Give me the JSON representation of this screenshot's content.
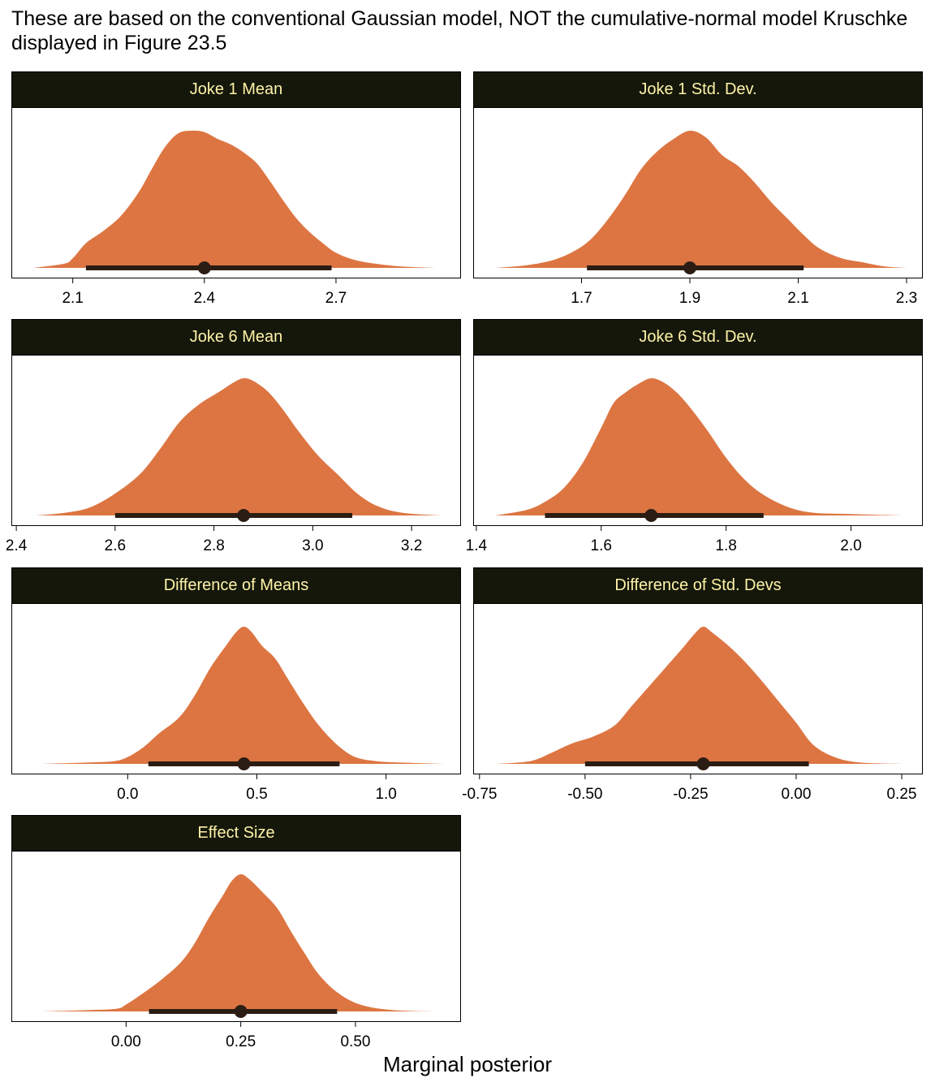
{
  "title": "These are based on the conventional Gaussian model, NOT the cumulative-normal model Kruschke displayed in Figure 23.5",
  "x_axis_label": "Marginal posterior",
  "colors": {
    "density_fill": "#DD7542",
    "interval": "#2B1D14",
    "strip_bg": "#14170A",
    "strip_text": "#FFF2A8"
  },
  "chart_data": [
    {
      "type": "area",
      "panel": "Joke 1 Mean",
      "xlim": [
        1.96,
        2.985
      ],
      "ticks": [
        "2.1",
        "2.4",
        "2.7"
      ],
      "density_range": [
        2.01,
        2.93
      ],
      "mode": 2.4,
      "interval": [
        2.13,
        2.69
      ],
      "density": {
        "x": [
          2.01,
          2.08,
          2.1,
          2.13,
          2.17,
          2.21,
          2.25,
          2.28,
          2.31,
          2.34,
          2.37,
          2.4,
          2.43,
          2.46,
          2.49,
          2.52,
          2.55,
          2.58,
          2.61,
          2.64,
          2.67,
          2.7,
          2.74,
          2.79,
          2.85,
          2.93
        ],
        "y": [
          0.0,
          0.03,
          0.07,
          0.18,
          0.27,
          0.38,
          0.55,
          0.72,
          0.88,
          0.98,
          1.0,
          0.99,
          0.94,
          0.9,
          0.84,
          0.76,
          0.63,
          0.49,
          0.36,
          0.26,
          0.18,
          0.11,
          0.06,
          0.03,
          0.01,
          0.0
        ]
      }
    },
    {
      "type": "area",
      "panel": "Joke 1 Std. Dev.",
      "xlim": [
        1.5,
        2.33
      ],
      "ticks": [
        "1.7",
        "1.9",
        "2.1",
        "2.3"
      ],
      "density_range": [
        1.54,
        2.3
      ],
      "mode": 1.9,
      "interval": [
        1.71,
        2.11
      ],
      "density": {
        "x": [
          1.54,
          1.6,
          1.65,
          1.69,
          1.72,
          1.75,
          1.78,
          1.81,
          1.84,
          1.87,
          1.9,
          1.93,
          1.96,
          1.99,
          2.02,
          2.05,
          2.08,
          2.11,
          2.14,
          2.18,
          2.22,
          2.26,
          2.3
        ],
        "y": [
          0.0,
          0.02,
          0.06,
          0.13,
          0.22,
          0.36,
          0.53,
          0.72,
          0.85,
          0.94,
          1.0,
          0.95,
          0.82,
          0.74,
          0.62,
          0.48,
          0.36,
          0.24,
          0.14,
          0.07,
          0.04,
          0.01,
          0.0
        ]
      }
    },
    {
      "type": "area",
      "panel": "Joke 6 Mean",
      "xlim": [
        2.39,
        3.3
      ],
      "ticks": [
        "2.4",
        "2.6",
        "2.8",
        "3.0",
        "3.2"
      ],
      "density_range": [
        2.44,
        3.26
      ],
      "mode": 2.86,
      "interval": [
        2.6,
        3.08
      ],
      "density": {
        "x": [
          2.44,
          2.5,
          2.55,
          2.6,
          2.65,
          2.69,
          2.73,
          2.77,
          2.81,
          2.84,
          2.86,
          2.88,
          2.91,
          2.94,
          2.97,
          3.01,
          3.05,
          3.09,
          3.13,
          3.18,
          3.26
        ],
        "y": [
          0.0,
          0.02,
          0.06,
          0.16,
          0.3,
          0.48,
          0.68,
          0.81,
          0.9,
          0.97,
          1.0,
          0.98,
          0.9,
          0.77,
          0.62,
          0.44,
          0.3,
          0.16,
          0.07,
          0.02,
          0.0
        ]
      }
    },
    {
      "type": "area",
      "panel": "Joke 6 Std. Dev.",
      "xlim": [
        1.395,
        2.115
      ],
      "ticks": [
        "1.4",
        "1.6",
        "1.8",
        "2.0"
      ],
      "density_range": [
        1.43,
        2.08
      ],
      "mode": 1.68,
      "interval": [
        1.51,
        1.86
      ],
      "density": {
        "x": [
          1.43,
          1.48,
          1.51,
          1.54,
          1.57,
          1.6,
          1.62,
          1.64,
          1.66,
          1.68,
          1.7,
          1.72,
          1.74,
          1.77,
          1.8,
          1.83,
          1.86,
          1.9,
          1.94,
          2.0,
          2.08
        ],
        "y": [
          0.0,
          0.04,
          0.1,
          0.2,
          0.38,
          0.64,
          0.82,
          0.9,
          0.96,
          1.0,
          0.97,
          0.9,
          0.8,
          0.62,
          0.42,
          0.26,
          0.15,
          0.06,
          0.02,
          0.01,
          0.0
        ]
      }
    },
    {
      "type": "area",
      "panel": "Difference of Means",
      "xlim": [
        -0.45,
        1.29
      ],
      "ticks": [
        "0.0",
        "0.5",
        "1.0"
      ],
      "density_range": [
        -0.33,
        1.23
      ],
      "mode": 0.45,
      "interval": [
        0.08,
        0.82
      ],
      "density": {
        "x": [
          -0.33,
          -0.15,
          -0.05,
          0.0,
          0.06,
          0.12,
          0.2,
          0.26,
          0.32,
          0.38,
          0.42,
          0.45,
          0.48,
          0.52,
          0.57,
          0.62,
          0.68,
          0.74,
          0.81,
          0.88,
          0.96,
          1.05,
          1.23
        ],
        "y": [
          0.0,
          0.01,
          0.02,
          0.05,
          0.12,
          0.22,
          0.34,
          0.5,
          0.7,
          0.86,
          0.96,
          1.0,
          0.96,
          0.86,
          0.77,
          0.62,
          0.44,
          0.28,
          0.14,
          0.05,
          0.02,
          0.01,
          0.0
        ]
      }
    },
    {
      "type": "area",
      "panel": "Difference of Std. Devs",
      "xlim": [
        -0.765,
        0.3
      ],
      "ticks": [
        "-0.75",
        "-0.50",
        "-0.25",
        "0.00",
        "0.25"
      ],
      "density_range": [
        -0.71,
        0.25
      ],
      "mode": -0.22,
      "interval": [
        -0.5,
        0.03
      ],
      "density": {
        "x": [
          -0.71,
          -0.63,
          -0.58,
          -0.53,
          -0.48,
          -0.43,
          -0.39,
          -0.35,
          -0.31,
          -0.27,
          -0.24,
          -0.22,
          -0.2,
          -0.16,
          -0.12,
          -0.08,
          -0.04,
          0.0,
          0.04,
          0.09,
          0.15,
          0.25
        ],
        "y": [
          0.0,
          0.02,
          0.08,
          0.15,
          0.2,
          0.28,
          0.42,
          0.56,
          0.7,
          0.84,
          0.95,
          1.0,
          0.96,
          0.86,
          0.74,
          0.6,
          0.45,
          0.3,
          0.14,
          0.05,
          0.01,
          0.0
        ]
      }
    },
    {
      "type": "area",
      "panel": "Effect Size",
      "xlim": [
        -0.25,
        0.73
      ],
      "ticks": [
        "0.00",
        "0.25",
        "0.50"
      ],
      "density_range": [
        -0.18,
        0.68
      ],
      "mode": 0.25,
      "interval": [
        0.05,
        0.46
      ],
      "density": {
        "x": [
          -0.18,
          -0.08,
          -0.02,
          0.0,
          0.04,
          0.08,
          0.12,
          0.15,
          0.18,
          0.21,
          0.23,
          0.25,
          0.27,
          0.3,
          0.33,
          0.36,
          0.39,
          0.42,
          0.46,
          0.51,
          0.58,
          0.68
        ],
        "y": [
          0.0,
          0.01,
          0.02,
          0.05,
          0.14,
          0.24,
          0.36,
          0.5,
          0.68,
          0.84,
          0.95,
          1.0,
          0.96,
          0.86,
          0.75,
          0.58,
          0.42,
          0.27,
          0.14,
          0.05,
          0.01,
          0.0
        ]
      }
    }
  ]
}
